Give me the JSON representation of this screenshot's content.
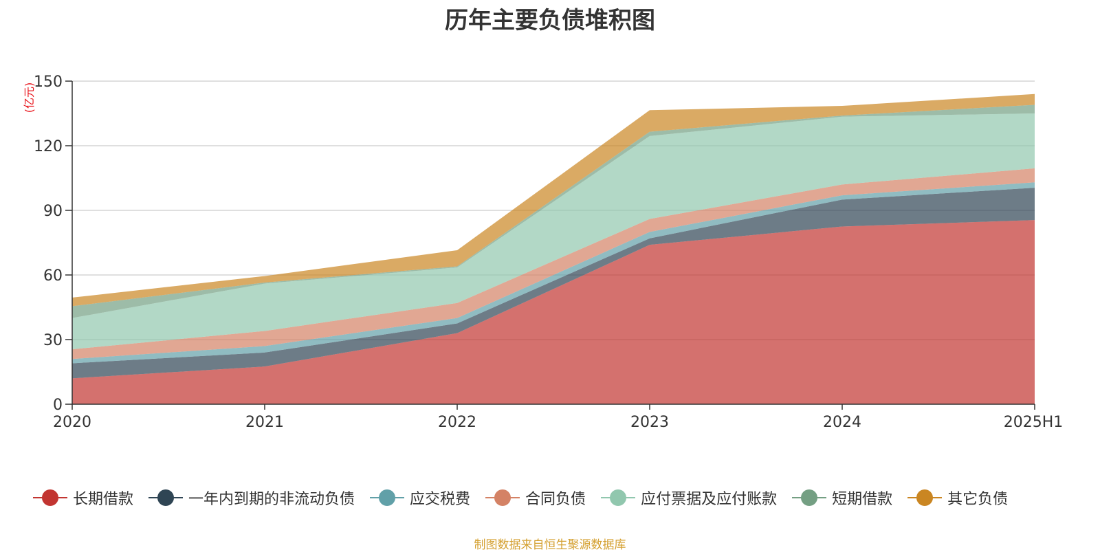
{
  "chart_data": {
    "type": "area",
    "stacked": true,
    "title": "历年主要负债堆积图",
    "ylabel": "(亿元)",
    "xlabel": "",
    "categories": [
      "2020",
      "2021",
      "2022",
      "2023",
      "2024",
      "2025H1"
    ],
    "ylim": [
      0,
      150
    ],
    "yticks": [
      0,
      30,
      60,
      90,
      120,
      150
    ],
    "grid": true,
    "legend_position": "bottom",
    "series": [
      {
        "name": "长期借款",
        "color": "#c23531",
        "values": [
          12,
          17.5,
          33,
          74,
          82.5,
          85.5
        ]
      },
      {
        "name": "一年内到期的非流动负债",
        "color": "#2f4554",
        "values": [
          7,
          6.5,
          4.5,
          3,
          12.5,
          15
        ]
      },
      {
        "name": "应交税费",
        "color": "#61a0a8",
        "values": [
          2,
          3,
          2.5,
          3,
          2,
          2.5
        ]
      },
      {
        "name": "合同负债",
        "color": "#d48265",
        "values": [
          4.5,
          7,
          7,
          6,
          5,
          6.5
        ]
      },
      {
        "name": "应付票据及应付账款",
        "color": "#91c7ae",
        "values": [
          14.5,
          22,
          16.5,
          38.5,
          31.5,
          25.5
        ]
      },
      {
        "name": "短期借款",
        "color": "#749f83",
        "values": [
          5.5,
          0.5,
          0.5,
          2,
          0.5,
          4
        ]
      },
      {
        "name": "其它负债",
        "color": "#ca8622",
        "values": [
          4,
          3,
          7.5,
          10,
          4.5,
          5
        ]
      }
    ]
  },
  "footer": {
    "source": "制图数据来自恒生聚源数据库"
  }
}
